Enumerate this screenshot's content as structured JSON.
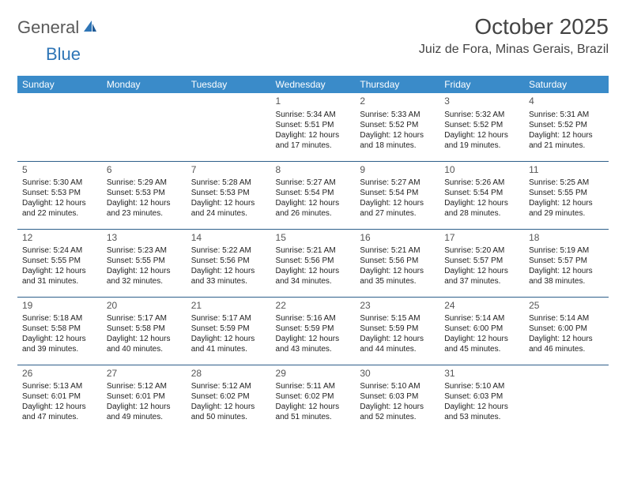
{
  "logo": {
    "text1": "General",
    "text2": "Blue"
  },
  "title": "October 2025",
  "location": "Juiz de Fora, Minas Gerais, Brazil",
  "colors": {
    "header_bg": "#3a8bc9",
    "header_text": "#ffffff",
    "row_border": "#2e5f8a",
    "logo_gray": "#5a5a5a",
    "logo_blue": "#2e75b6",
    "body_text": "#222222",
    "title_text": "#444444",
    "background": "#ffffff"
  },
  "typography": {
    "title_fontsize": 28,
    "location_fontsize": 16,
    "dayheader_fontsize": 12,
    "daynum_fontsize": 12,
    "cell_fontsize": 10,
    "logo_fontsize": 22
  },
  "day_headers": [
    "Sunday",
    "Monday",
    "Tuesday",
    "Wednesday",
    "Thursday",
    "Friday",
    "Saturday"
  ],
  "weeks": [
    [
      null,
      null,
      null,
      {
        "n": "1",
        "sr": "5:34 AM",
        "ss": "5:51 PM",
        "dl": "12 hours and 17 minutes."
      },
      {
        "n": "2",
        "sr": "5:33 AM",
        "ss": "5:52 PM",
        "dl": "12 hours and 18 minutes."
      },
      {
        "n": "3",
        "sr": "5:32 AM",
        "ss": "5:52 PM",
        "dl": "12 hours and 19 minutes."
      },
      {
        "n": "4",
        "sr": "5:31 AM",
        "ss": "5:52 PM",
        "dl": "12 hours and 21 minutes."
      }
    ],
    [
      {
        "n": "5",
        "sr": "5:30 AM",
        "ss": "5:53 PM",
        "dl": "12 hours and 22 minutes."
      },
      {
        "n": "6",
        "sr": "5:29 AM",
        "ss": "5:53 PM",
        "dl": "12 hours and 23 minutes."
      },
      {
        "n": "7",
        "sr": "5:28 AM",
        "ss": "5:53 PM",
        "dl": "12 hours and 24 minutes."
      },
      {
        "n": "8",
        "sr": "5:27 AM",
        "ss": "5:54 PM",
        "dl": "12 hours and 26 minutes."
      },
      {
        "n": "9",
        "sr": "5:27 AM",
        "ss": "5:54 PM",
        "dl": "12 hours and 27 minutes."
      },
      {
        "n": "10",
        "sr": "5:26 AM",
        "ss": "5:54 PM",
        "dl": "12 hours and 28 minutes."
      },
      {
        "n": "11",
        "sr": "5:25 AM",
        "ss": "5:55 PM",
        "dl": "12 hours and 29 minutes."
      }
    ],
    [
      {
        "n": "12",
        "sr": "5:24 AM",
        "ss": "5:55 PM",
        "dl": "12 hours and 31 minutes."
      },
      {
        "n": "13",
        "sr": "5:23 AM",
        "ss": "5:55 PM",
        "dl": "12 hours and 32 minutes."
      },
      {
        "n": "14",
        "sr": "5:22 AM",
        "ss": "5:56 PM",
        "dl": "12 hours and 33 minutes."
      },
      {
        "n": "15",
        "sr": "5:21 AM",
        "ss": "5:56 PM",
        "dl": "12 hours and 34 minutes."
      },
      {
        "n": "16",
        "sr": "5:21 AM",
        "ss": "5:56 PM",
        "dl": "12 hours and 35 minutes."
      },
      {
        "n": "17",
        "sr": "5:20 AM",
        "ss": "5:57 PM",
        "dl": "12 hours and 37 minutes."
      },
      {
        "n": "18",
        "sr": "5:19 AM",
        "ss": "5:57 PM",
        "dl": "12 hours and 38 minutes."
      }
    ],
    [
      {
        "n": "19",
        "sr": "5:18 AM",
        "ss": "5:58 PM",
        "dl": "12 hours and 39 minutes."
      },
      {
        "n": "20",
        "sr": "5:17 AM",
        "ss": "5:58 PM",
        "dl": "12 hours and 40 minutes."
      },
      {
        "n": "21",
        "sr": "5:17 AM",
        "ss": "5:59 PM",
        "dl": "12 hours and 41 minutes."
      },
      {
        "n": "22",
        "sr": "5:16 AM",
        "ss": "5:59 PM",
        "dl": "12 hours and 43 minutes."
      },
      {
        "n": "23",
        "sr": "5:15 AM",
        "ss": "5:59 PM",
        "dl": "12 hours and 44 minutes."
      },
      {
        "n": "24",
        "sr": "5:14 AM",
        "ss": "6:00 PM",
        "dl": "12 hours and 45 minutes."
      },
      {
        "n": "25",
        "sr": "5:14 AM",
        "ss": "6:00 PM",
        "dl": "12 hours and 46 minutes."
      }
    ],
    [
      {
        "n": "26",
        "sr": "5:13 AM",
        "ss": "6:01 PM",
        "dl": "12 hours and 47 minutes."
      },
      {
        "n": "27",
        "sr": "5:12 AM",
        "ss": "6:01 PM",
        "dl": "12 hours and 49 minutes."
      },
      {
        "n": "28",
        "sr": "5:12 AM",
        "ss": "6:02 PM",
        "dl": "12 hours and 50 minutes."
      },
      {
        "n": "29",
        "sr": "5:11 AM",
        "ss": "6:02 PM",
        "dl": "12 hours and 51 minutes."
      },
      {
        "n": "30",
        "sr": "5:10 AM",
        "ss": "6:03 PM",
        "dl": "12 hours and 52 minutes."
      },
      {
        "n": "31",
        "sr": "5:10 AM",
        "ss": "6:03 PM",
        "dl": "12 hours and 53 minutes."
      },
      null
    ]
  ],
  "labels": {
    "sunrise": "Sunrise:",
    "sunset": "Sunset:",
    "daylight": "Daylight:"
  }
}
